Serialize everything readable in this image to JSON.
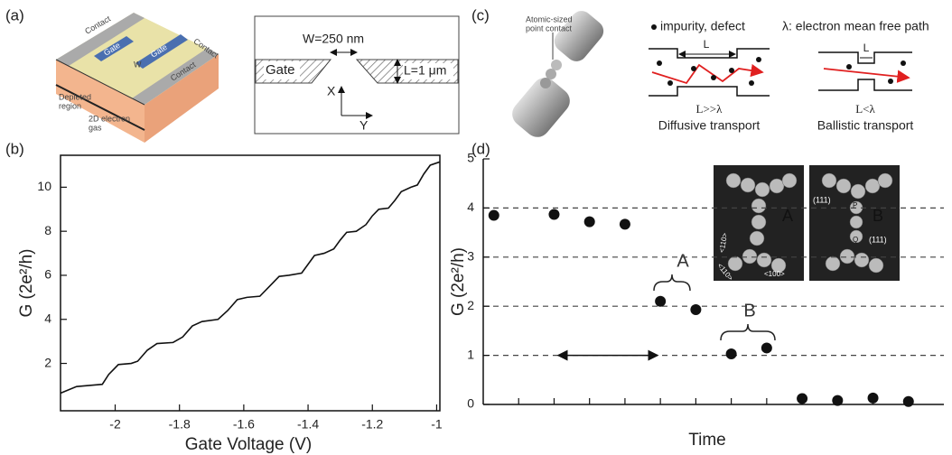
{
  "panel_labels": [
    "(a)",
    "(b)",
    "(c)",
    "(d)"
  ],
  "device": {
    "contacts": [
      "Contact",
      "Contact",
      "Contact"
    ],
    "gates": [
      "Gate",
      "Gate"
    ],
    "width": "W",
    "depleted": [
      "Depleted",
      "region"
    ],
    "gas": [
      "2D electron",
      "gas"
    ]
  },
  "schematic": {
    "gate": "Gate",
    "width": "W=250 nm",
    "length": "L=1 μm",
    "x_axis": "X",
    "y_axis": "Y"
  },
  "transport": {
    "contact": [
      "Atomic-sized",
      "point contact"
    ],
    "impurity": "impurity, defect",
    "mfp": "λ: electron mean free path",
    "length": [
      "L",
      "L"
    ],
    "diffusive_cond": "L>>λ",
    "diffusive": "Diffusive transport",
    "ballistic_cond": "L<λ",
    "ballistic": "Ballistic transport"
  },
  "inset": {
    "labels": [
      "A",
      "B"
    ],
    "planes": [
      "(111)",
      "(111)"
    ],
    "points": [
      "P",
      "Q"
    ],
    "directions": [
      "<110>",
      "<110>",
      "<100>"
    ]
  },
  "chart_data": [
    {
      "type": "line",
      "x_label": "Gate Voltage (V)",
      "y_label": "G (2e²/h)",
      "color": "#111",
      "x": [
        -2.17,
        -2.12,
        -2.08,
        -2.04,
        -2.02,
        -1.99,
        -1.95,
        -1.93,
        -1.9,
        -1.87,
        -1.82,
        -1.79,
        -1.76,
        -1.73,
        -1.68,
        -1.65,
        -1.62,
        -1.59,
        -1.55,
        -1.52,
        -1.49,
        -1.46,
        -1.42,
        -1.4,
        -1.38,
        -1.35,
        -1.32,
        -1.3,
        -1.28,
        -1.25,
        -1.22,
        -1.2,
        -1.18,
        -1.15,
        -1.13,
        -1.11,
        -1.08,
        -1.06,
        -1.04,
        -1.02,
        -0.99
      ],
      "values": [
        0.65,
        0.95,
        1.0,
        1.05,
        1.5,
        1.95,
        2.0,
        2.1,
        2.6,
        2.9,
        2.95,
        3.2,
        3.7,
        3.9,
        4.0,
        4.4,
        4.9,
        5.0,
        5.05,
        5.5,
        5.95,
        6.0,
        6.1,
        6.5,
        6.9,
        7.0,
        7.2,
        7.6,
        7.95,
        8.0,
        8.3,
        8.7,
        9.0,
        9.05,
        9.4,
        9.8,
        10.0,
        10.1,
        10.6,
        11.0,
        11.15
      ],
      "xlim": [
        -2.17,
        -0.99
      ],
      "ylim": [
        -0.15,
        11.45
      ],
      "xticks": [
        -2,
        -1.8,
        -1.6,
        -1.4,
        -1.2,
        -1
      ],
      "yticks": [
        2,
        4,
        6,
        8,
        10
      ]
    },
    {
      "type": "scatter",
      "x_label": "Time",
      "y_label": "G (2e²/h)",
      "color": "#111",
      "x": [
        0.3,
        2,
        3,
        4,
        5,
        6,
        7,
        8,
        9,
        10,
        11,
        12
      ],
      "values": [
        3.85,
        3.87,
        3.72,
        3.67,
        2.1,
        1.93,
        1.03,
        1.15,
        0.12,
        0.08,
        0.13,
        0.06
      ],
      "xlim": [
        0,
        13
      ],
      "ylim": [
        0,
        5
      ],
      "xticks": [
        1,
        2,
        3,
        4,
        5,
        6,
        7,
        8,
        9,
        10,
        11,
        12
      ],
      "yticks": [
        0,
        1,
        2,
        3,
        4,
        5
      ],
      "grid": "dashed",
      "annotations": [
        "A",
        "B"
      ]
    }
  ]
}
